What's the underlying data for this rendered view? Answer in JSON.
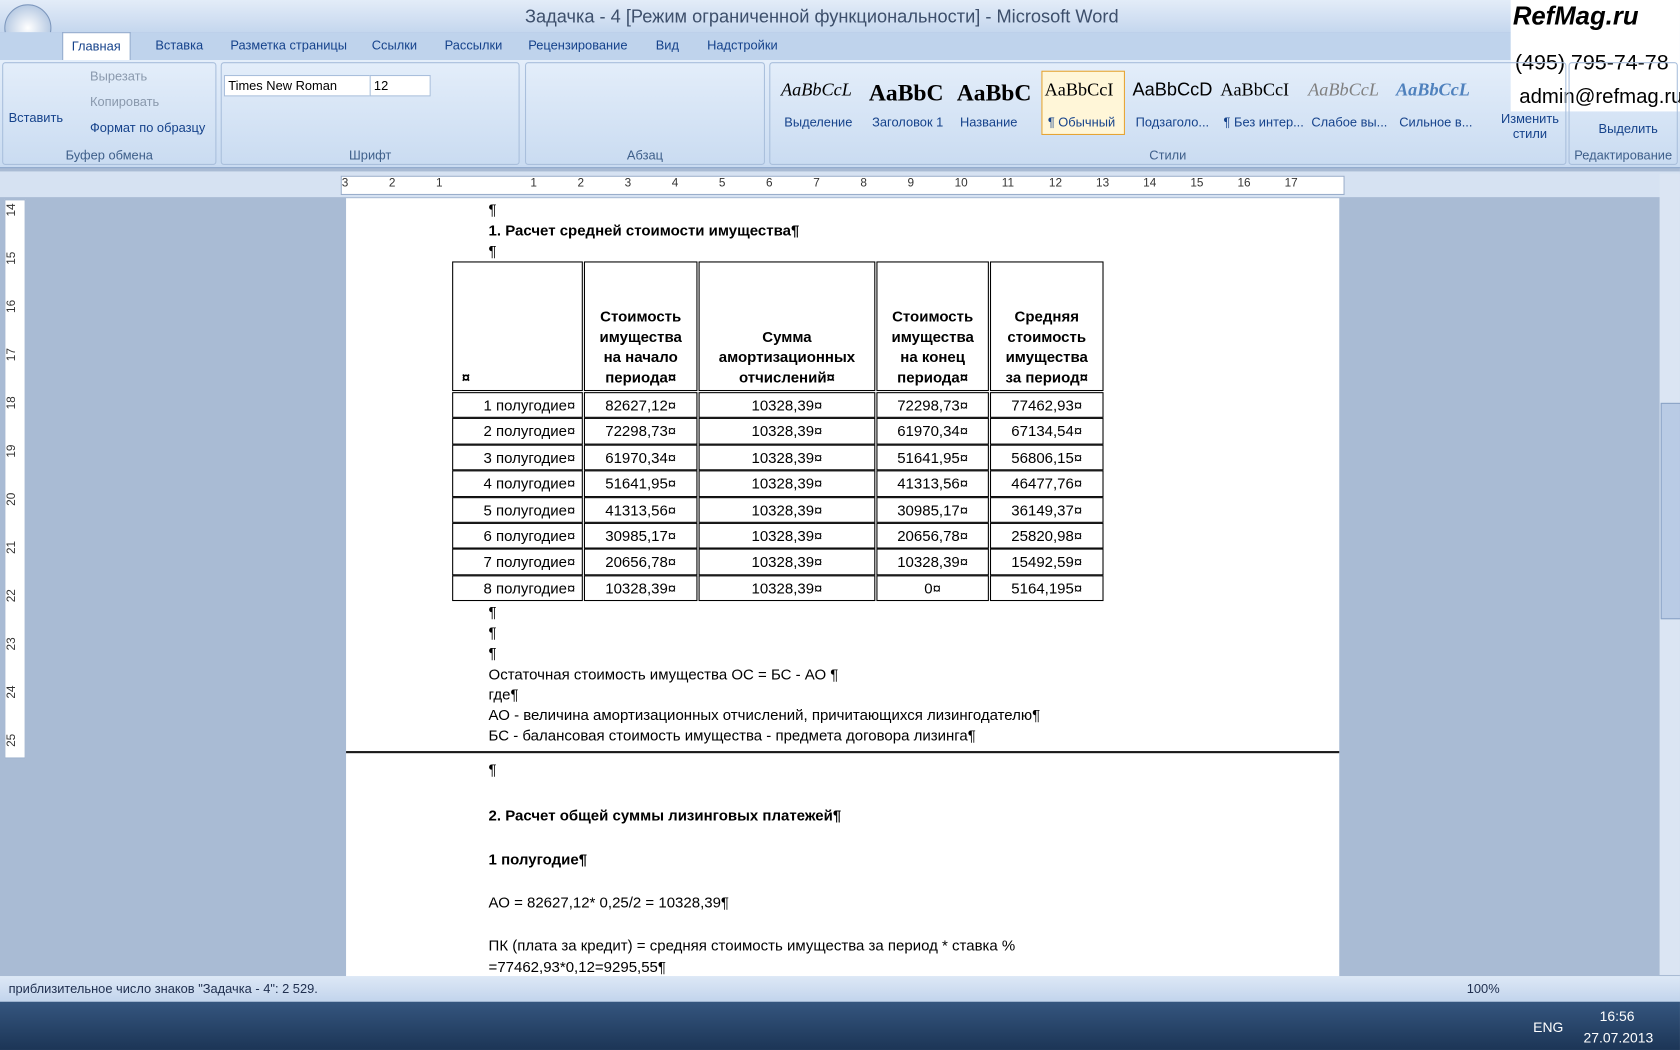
{
  "window": {
    "title": "Задачка - 4 [Режим ограниченной функциональности] - Microsoft Word",
    "watermark": [
      "RefMag.ru",
      "(495) 795-74-78",
      "admin@refmag.ru"
    ]
  },
  "ribbon": {
    "tabs": [
      "Главная",
      "Вставка",
      "Разметка страницы",
      "Ссылки",
      "Рассылки",
      "Рецензирование",
      "Вид",
      "Надстройки"
    ],
    "paste": "Вставить",
    "clipboard_items": [
      "Вырезать",
      "Копировать",
      "Формат по образцу"
    ],
    "font_name": "Times New Roman",
    "font_size": "12",
    "styles": [
      {
        "sample": "AaBbCcL",
        "name": "Выделение"
      },
      {
        "sample": "AaBbC",
        "name": "Заголовок 1"
      },
      {
        "sample": "AaBbC",
        "name": "Название"
      },
      {
        "sample": "AaBbCcI",
        "name": "¶ Обычный"
      },
      {
        "sample": "AaBbCcD",
        "name": "Подзаголо..."
      },
      {
        "sample": "AaBbCcI",
        "name": "¶ Без интер..."
      },
      {
        "sample": "AaBbCcL",
        "name": "Слабое вы..."
      },
      {
        "sample": "AaBbCcL",
        "name": "Сильное в..."
      }
    ],
    "change_styles": "Изменить стили",
    "select": "Выделить",
    "groups": [
      "Буфер обмена",
      "Шрифт",
      "Абзац",
      "Стили",
      "Редактирование"
    ]
  },
  "ruler": {
    "horizontal": [
      "3",
      "2",
      "1",
      "1",
      "2",
      "3",
      "4",
      "5",
      "6",
      "7",
      "8",
      "9",
      "10",
      "11",
      "12",
      "13",
      "14",
      "15",
      "16",
      "17"
    ],
    "vertical": [
      "14",
      "15",
      "16",
      "17",
      "18",
      "19",
      "20",
      "21",
      "22",
      "23",
      "24",
      "25"
    ]
  },
  "document": {
    "before": [
      {
        "text": "¶"
      },
      {
        "text": "1. Расчет средней стоимости имущества¶",
        "bold": true
      },
      {
        "text": "¶"
      }
    ],
    "table": {
      "header": [
        "¤",
        "Стоимость\nимущества\nна начало\nпериода¤",
        "Сумма\nамортизационных\nотчислений¤",
        "Стоимость\nимущества\nна конец\nпериода¤",
        "Средняя\nстоимость\nимущества\nза период¤"
      ],
      "rows": [
        [
          "1 полугодие¤",
          "82627,12¤",
          "10328,39¤",
          "72298,73¤",
          "77462,93¤"
        ],
        [
          "2 полугодие¤",
          "72298,73¤",
          "10328,39¤",
          "61970,34¤",
          "67134,54¤"
        ],
        [
          "3 полугодие¤",
          "61970,34¤",
          "10328,39¤",
          "51641,95¤",
          "56806,15¤"
        ],
        [
          "4 полугодие¤",
          "51641,95¤",
          "10328,39¤",
          "41313,56¤",
          "46477,76¤"
        ],
        [
          "5 полугодие¤",
          "41313,56¤",
          "10328,39¤",
          "30985,17¤",
          "36149,37¤"
        ],
        [
          "6 полугодие¤",
          "30985,17¤",
          "10328,39¤",
          "20656,78¤",
          "25820,98¤"
        ],
        [
          "7 полугодие¤",
          "20656,78¤",
          "10328,39¤",
          "10328,39¤",
          "15492,59¤"
        ],
        [
          "8 полугодие¤",
          "10328,39¤",
          "10328,39¤",
          "0¤",
          "5164,195¤"
        ]
      ]
    },
    "after": [
      {
        "text": "¶"
      },
      {
        "text": "¶"
      },
      {
        "text": "¶"
      },
      {
        "text": "Остаточная стоимость имущества ОС = БС - АО ¶"
      },
      {
        "text": "где¶"
      },
      {
        "text": "АО - величина амортизационных отчислений, причитающихся лизингодателю¶"
      },
      {
        "text": "БС - балансовая стоимость имущества - предмета договора лизинга¶"
      },
      {
        "text": "¶"
      },
      {
        "text": "2. Расчет общей суммы лизинговых платежей¶",
        "bold": true
      },
      {
        "text": "1 полугодие¶",
        "bold": true
      },
      {
        "text": "АО = 82627,12* 0,25/2 = 10328,39¶"
      },
      {
        "text": "ПК (плата за кредит) = средняя стоимость имущества за период * ставка % "
      },
      {
        "text": "=77462,93*0,12=9295,55¶"
      }
    ]
  },
  "status_bar": {
    "text": "приблизительное число знаков \"Задачка - 4\": 2 529.",
    "zoom": "100%"
  },
  "taskbar": {
    "lang": "ENG",
    "time": "16:56",
    "date": "27.07.2013"
  }
}
